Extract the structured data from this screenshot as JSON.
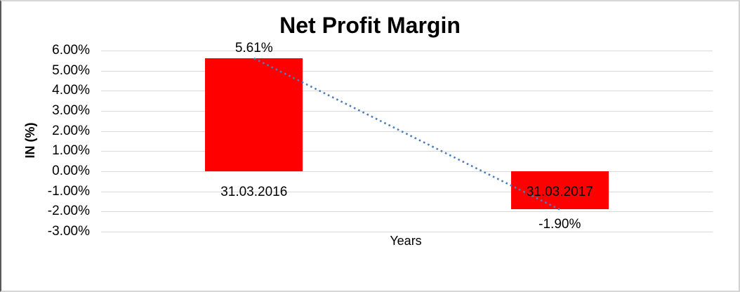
{
  "chart_data": {
    "type": "bar",
    "title": "Net Profit Margin",
    "xlabel": "Years",
    "ylabel": "IN (%)",
    "categories": [
      "31.03.2016",
      "31.03.2017"
    ],
    "series": [
      {
        "name": "Net Profit Margin",
        "values": [
          5.61,
          -1.9
        ]
      }
    ],
    "data_labels": [
      "5.61%",
      "-1.90%"
    ],
    "ytick_labels": [
      "6.00%",
      "5.00%",
      "4.00%",
      "3.00%",
      "2.00%",
      "1.00%",
      "0.00%",
      "-1.00%",
      "-2.00%",
      "-3.00%"
    ],
    "ylim": [
      -3,
      6
    ],
    "grid": "horizontal",
    "legend": "none",
    "bar_color": "#FF0000",
    "gridline_color": "#D9D9D9",
    "text_color": "#000000",
    "trendline": {
      "type": "linear",
      "style": "dotted",
      "color": "#4A7EBB",
      "points": [
        5.61,
        -1.9
      ]
    }
  }
}
